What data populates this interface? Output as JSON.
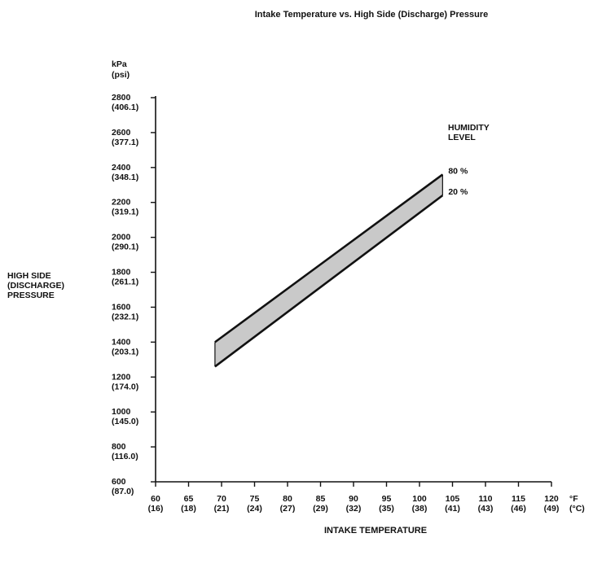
{
  "chart_data": {
    "type": "area",
    "title": "Intake Temperature vs. High Side (Discharge) Pressure",
    "xlabel": "INTAKE TEMPERATURE",
    "ylabel": [
      "HIGH SIDE",
      "(DISCHARGE)",
      "PRESSURE"
    ],
    "y_unit": [
      "kPa",
      "(psi)"
    ],
    "x_unit": [
      "°F",
      "(°C)"
    ],
    "xlim": [
      60,
      120
    ],
    "ylim": [
      600,
      2800
    ],
    "x_ticks": [
      {
        "f": "60",
        "c": "(16)"
      },
      {
        "f": "65",
        "c": "(18)"
      },
      {
        "f": "70",
        "c": "(21)"
      },
      {
        "f": "75",
        "c": "(24)"
      },
      {
        "f": "80",
        "c": "(27)"
      },
      {
        "f": "85",
        "c": "(29)"
      },
      {
        "f": "90",
        "c": "(32)"
      },
      {
        "f": "95",
        "c": "(35)"
      },
      {
        "f": "100",
        "c": "(38)"
      },
      {
        "f": "105",
        "c": "(41)"
      },
      {
        "f": "110",
        "c": "(43)"
      },
      {
        "f": "115",
        "c": "(46)"
      },
      {
        "f": "120",
        "c": "(49)"
      }
    ],
    "y_ticks": [
      {
        "kpa": "2800",
        "psi": "(406.1)"
      },
      {
        "kpa": "2600",
        "psi": "(377.1)"
      },
      {
        "kpa": "2400",
        "psi": "(348.1)"
      },
      {
        "kpa": "2200",
        "psi": "(319.1)"
      },
      {
        "kpa": "2000",
        "psi": "(290.1)"
      },
      {
        "kpa": "1800",
        "psi": "(261.1)"
      },
      {
        "kpa": "1600",
        "psi": "(232.1)"
      },
      {
        "kpa": "1400",
        "psi": "(203.1)"
      },
      {
        "kpa": "1200",
        "psi": "(174.0)"
      },
      {
        "kpa": "1000",
        "psi": "(145.0)"
      },
      {
        "kpa": "800",
        "psi": "(116.0)"
      },
      {
        "kpa": "600",
        "psi": "(87.0)"
      }
    ],
    "legend_title": [
      "HUMIDITY",
      "LEVEL"
    ],
    "series": [
      {
        "name": "80 %",
        "x": [
          69,
          103.5
        ],
        "y": [
          1400,
          2360
        ]
      },
      {
        "name": "20 %",
        "x": [
          69,
          103.5
        ],
        "y": [
          1260,
          2240
        ]
      }
    ],
    "band_fill": "#c9c9c9",
    "grid": false
  }
}
